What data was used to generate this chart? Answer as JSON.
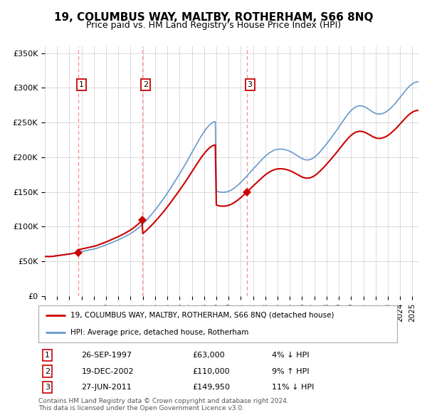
{
  "title": "19, COLUMBUS WAY, MALTBY, ROTHERHAM, S66 8NQ",
  "subtitle": "Price paid vs. HM Land Registry's House Price Index (HPI)",
  "ylim": [
    0,
    360000
  ],
  "yticks": [
    0,
    50000,
    100000,
    150000,
    200000,
    250000,
    300000,
    350000
  ],
  "ytick_labels": [
    "£0",
    "£50K",
    "£100K",
    "£150K",
    "£200K",
    "£250K",
    "£300K",
    "£350K"
  ],
  "xlim_start": 1995.0,
  "xlim_end": 2025.5,
  "xticks": [
    1995,
    1996,
    1997,
    1998,
    1999,
    2000,
    2001,
    2002,
    2003,
    2004,
    2005,
    2006,
    2007,
    2008,
    2009,
    2010,
    2011,
    2012,
    2013,
    2014,
    2015,
    2016,
    2017,
    2018,
    2019,
    2020,
    2021,
    2022,
    2023,
    2024,
    2025
  ],
  "line1_color": "#cc0000",
  "line2_color": "#6699cc",
  "grid_color": "#cccccc",
  "bg_color": "#ffffff",
  "purchases": [
    {
      "num": 1,
      "date_x": 1997.73,
      "price": 63000,
      "label": "26-SEP-1997",
      "amount": "£63,000",
      "hpi_diff": "4% ↓ HPI"
    },
    {
      "num": 2,
      "date_x": 2002.96,
      "price": 110000,
      "label": "19-DEC-2002",
      "amount": "£110,000",
      "hpi_diff": "9% ↑ HPI"
    },
    {
      "num": 3,
      "date_x": 2011.49,
      "price": 149950,
      "label": "27-JUN-2011",
      "amount": "£149,950",
      "hpi_diff": "11% ↓ HPI"
    }
  ],
  "legend_line1": "19, COLUMBUS WAY, MALTBY, ROTHERHAM, S66 8NQ (detached house)",
  "legend_line2": "HPI: Average price, detached house, Rotherham",
  "footer1": "Contains HM Land Registry data © Crown copyright and database right 2024.",
  "footer2": "This data is licensed under the Open Government Licence v3.0.",
  "hpi_data_y": [
    57000,
    57200,
    57300,
    57100,
    57000,
    57200,
    57400,
    57300,
    57500,
    57600,
    57800,
    58000,
    58200,
    58400,
    58600,
    58800,
    59000,
    59200,
    59400,
    59600,
    59800,
    60000,
    60300,
    60500,
    60700,
    61000,
    61300,
    61500,
    61800,
    62100,
    62300,
    62600,
    62900,
    63200,
    63500,
    63800,
    64100,
    64400,
    64700,
    65000,
    65300,
    65600,
    65900,
    66200,
    66500,
    66800,
    67100,
    67400,
    67700,
    68100,
    68500,
    69000,
    69500,
    70000,
    70500,
    71000,
    71600,
    72100,
    72700,
    73200,
    73700,
    74300,
    74900,
    75500,
    76100,
    76700,
    77300,
    77900,
    78500,
    79100,
    79800,
    80400,
    81000,
    81700,
    82400,
    83100,
    83800,
    84500,
    85200,
    86000,
    86800,
    87600,
    88400,
    89200,
    90100,
    91000,
    92000,
    93000,
    94100,
    95200,
    96300,
    97500,
    98700,
    100000,
    101300,
    102600,
    104000,
    105500,
    107000,
    108500,
    110100,
    111700,
    113400,
    115100,
    116800,
    118500,
    120300,
    122100,
    124000,
    125900,
    127800,
    129700,
    131700,
    133700,
    135700,
    137700,
    139800,
    141900,
    144000,
    146200,
    148400,
    150600,
    152800,
    155100,
    157400,
    159700,
    162000,
    164300,
    166600,
    168900,
    171300,
    173700,
    176100,
    178500,
    180900,
    183400,
    185900,
    188400,
    190900,
    193500,
    196100,
    198700,
    201300,
    203900,
    206600,
    209300,
    212000,
    214600,
    217200,
    219800,
    222400,
    225000,
    227500,
    229900,
    232300,
    234600,
    236800,
    238900,
    240900,
    242800,
    244500,
    246100,
    247500,
    248700,
    249700,
    250500,
    251100,
    251400,
    151600,
    151000,
    150500,
    150100,
    149800,
    149600,
    149500,
    149500,
    149600,
    149800,
    150100,
    150500,
    151000,
    151600,
    152300,
    153100,
    154000,
    155000,
    156100,
    157200,
    158400,
    159700,
    161000,
    162400,
    163800,
    165300,
    166800,
    168300,
    169900,
    171500,
    173100,
    174700,
    176400,
    178000,
    179700,
    181300,
    183000,
    184600,
    186300,
    187900,
    189500,
    191100,
    192700,
    194300,
    195800,
    197300,
    198800,
    200200,
    201600,
    202900,
    204100,
    205200,
    206300,
    207300,
    208200,
    209000,
    209700,
    210300,
    210800,
    211200,
    211500,
    211700,
    211800,
    211800,
    211800,
    211600,
    211400,
    211100,
    210700,
    210300,
    209800,
    209200,
    208600,
    207900,
    207100,
    206300,
    205400,
    204500,
    203600,
    202700,
    201700,
    200700,
    199800,
    198900,
    198100,
    197400,
    196900,
    196500,
    196200,
    196100,
    196200,
    196400,
    196800,
    197400,
    198100,
    199000,
    200100,
    201200,
    202500,
    203900,
    205400,
    206900,
    208500,
    210200,
    211900,
    213700,
    215500,
    217400,
    219300,
    221200,
    223100,
    225000,
    227000,
    229000,
    231000,
    233000,
    235000,
    237100,
    239200,
    241300,
    243500,
    245600,
    247800,
    250000,
    252100,
    254300,
    256400,
    258400,
    260400,
    262300,
    264100,
    265700,
    267300,
    268700,
    270000,
    271100,
    272000,
    272800,
    273400,
    273800,
    274100,
    274100,
    274000,
    273700,
    273300,
    272700,
    272000,
    271200,
    270300,
    269300,
    268300,
    267300,
    266300,
    265400,
    264500,
    263800,
    263200,
    262700,
    262400,
    262200,
    262200,
    262400,
    262700,
    263100,
    263700,
    264400,
    265200,
    266100,
    267200,
    268400,
    269700,
    271000,
    272500,
    274000,
    275600,
    277200,
    278900,
    280700,
    282500,
    284300,
    286200,
    288100,
    290000,
    291900,
    293800,
    295600,
    297400,
    299100,
    300700,
    302200,
    303500,
    304700,
    305800,
    306700,
    307500,
    308100,
    308500,
    308800,
    308900,
    308800,
    308700,
    308400,
    308100,
    307700,
    307200,
    306700,
    306200,
    305700,
    305200,
    304800,
    304500,
    304400,
    304300,
    304400,
    304600,
    304900,
    305400,
    306000,
    306700,
    307500,
    308400,
    309400,
    310400,
    311500,
    312600,
    313800,
    315000,
    316300,
    317500,
    318800
  ]
}
